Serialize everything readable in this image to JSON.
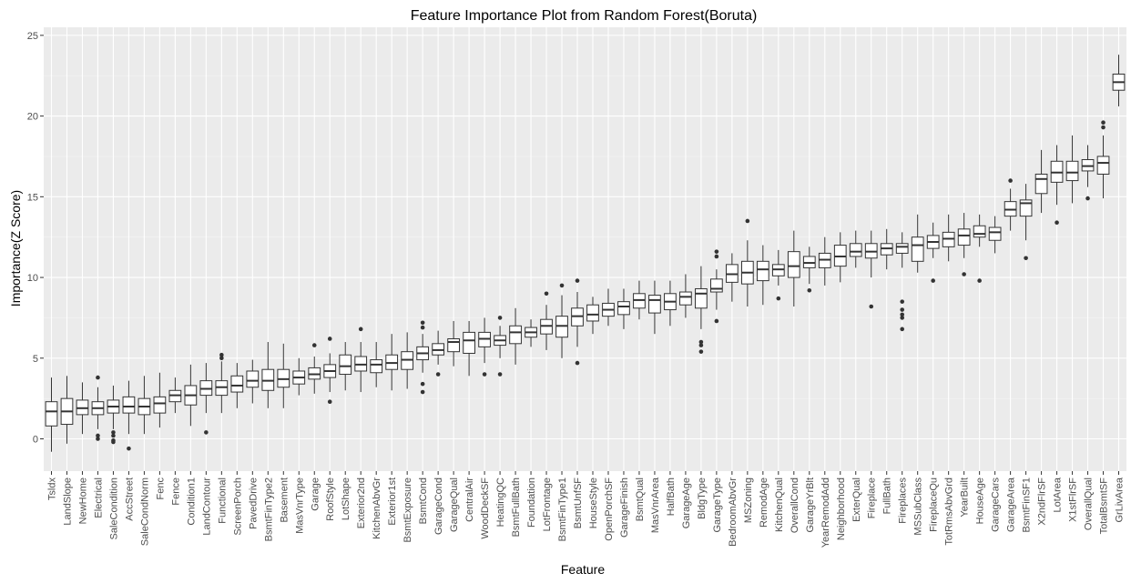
{
  "chart_data": {
    "type": "boxplot",
    "title": "Feature Importance Plot from Random Forest(Boruta)",
    "xlabel": "Feature",
    "ylabel": "Importance(Z Score)",
    "ylim": [
      -2,
      25.5
    ],
    "yticks": [
      0,
      5,
      10,
      15,
      20,
      25
    ],
    "grid": true,
    "legend": "none",
    "colors": {
      "panel": "#ebebeb",
      "grid_major": "#ffffff",
      "grid_minor": "#f5f5f5",
      "box_fill": "#ffffff",
      "box_line": "#333333",
      "tick_text": "#4d4d4d"
    },
    "categories": [
      "Tsldx",
      "LandSlope",
      "NewHome",
      "Electrical",
      "SaleCondition",
      "AccStreet",
      "SaleCondNorm",
      "Fenc",
      "Fence",
      "Condition1",
      "LandContour",
      "Functional",
      "ScreenPorch",
      "PavedDrive",
      "BsmtFinType2",
      "Basement",
      "MasVnrType",
      "Garage",
      "RoofStyle",
      "LotShape",
      "Exterior2nd",
      "KitchenAbvGr",
      "Exterior1st",
      "BsmtExposure",
      "BsmtCond",
      "GarageCond",
      "GarageQual",
      "CentralAir",
      "WoodDeckSF",
      "HeatingQC",
      "BsmtFullBath",
      "Foundation",
      "LotFrontage",
      "BsmtFinType1",
      "BsmtUnfSF",
      "HouseStyle",
      "OpenPorchSF",
      "GarageFinish",
      "BsmtQual",
      "MasVnrArea",
      "HalfBath",
      "GarageAge",
      "BldgType",
      "GarageType",
      "BedroomAbvGr",
      "MSZoning",
      "RemodAge",
      "KitchenQual",
      "OverallCond",
      "GarageYrBlt",
      "YearRemodAdd",
      "Neighborhood",
      "ExterQual",
      "Fireplace",
      "FullBath",
      "Fireplaces",
      "MSSubClass",
      "FireplaceQu",
      "TotRmsAbvGrd",
      "YearBuilt",
      "HouseAge",
      "GarageCars",
      "GarageArea",
      "BsmtFinSF1",
      "X2ndFlrSF",
      "LotArea",
      "X1stFlrSF",
      "OverallQual",
      "TotalBsmtSF",
      "GrLivArea"
    ],
    "boxes": [
      {
        "low": -0.8,
        "q1": 0.8,
        "median": 1.7,
        "q3": 2.3,
        "high": 3.8,
        "outliers": []
      },
      {
        "low": -0.3,
        "q1": 0.9,
        "median": 1.7,
        "q3": 2.5,
        "high": 3.9,
        "outliers": []
      },
      {
        "low": 0.3,
        "q1": 1.5,
        "median": 1.9,
        "q3": 2.4,
        "high": 3.5,
        "outliers": []
      },
      {
        "low": 0.6,
        "q1": 1.5,
        "median": 1.9,
        "q3": 2.3,
        "high": 3.2,
        "outliers": [
          3.8,
          0.2,
          0.0
        ]
      },
      {
        "low": 0.6,
        "q1": 1.6,
        "median": 2.0,
        "q3": 2.4,
        "high": 3.3,
        "outliers": [
          0.4,
          0.2,
          -0.1,
          -0.2
        ]
      },
      {
        "low": 0.3,
        "q1": 1.6,
        "median": 2.0,
        "q3": 2.6,
        "high": 3.6,
        "outliers": [
          -0.6
        ]
      },
      {
        "low": 0.3,
        "q1": 1.5,
        "median": 2.0,
        "q3": 2.5,
        "high": 3.9,
        "outliers": []
      },
      {
        "low": 0.7,
        "q1": 1.6,
        "median": 2.2,
        "q3": 2.6,
        "high": 4.1,
        "outliers": []
      },
      {
        "low": 1.6,
        "q1": 2.3,
        "median": 2.7,
        "q3": 3.0,
        "high": 3.8,
        "outliers": []
      },
      {
        "low": 0.8,
        "q1": 2.1,
        "median": 2.7,
        "q3": 3.3,
        "high": 4.6,
        "outliers": []
      },
      {
        "low": 1.6,
        "q1": 2.7,
        "median": 3.1,
        "q3": 3.6,
        "high": 4.7,
        "outliers": [
          0.4
        ]
      },
      {
        "low": 1.6,
        "q1": 2.7,
        "median": 3.2,
        "q3": 3.6,
        "high": 4.8,
        "outliers": [
          5.2,
          5.0
        ]
      },
      {
        "low": 1.9,
        "q1": 2.9,
        "median": 3.3,
        "q3": 3.9,
        "high": 4.7,
        "outliers": []
      },
      {
        "low": 2.2,
        "q1": 3.2,
        "median": 3.6,
        "q3": 4.2,
        "high": 4.9,
        "outliers": []
      },
      {
        "low": 1.9,
        "q1": 3.0,
        "median": 3.6,
        "q3": 4.3,
        "high": 6.0,
        "outliers": []
      },
      {
        "low": 1.9,
        "q1": 3.2,
        "median": 3.7,
        "q3": 4.3,
        "high": 5.9,
        "outliers": []
      },
      {
        "low": 2.7,
        "q1": 3.4,
        "median": 3.8,
        "q3": 4.2,
        "high": 5.0,
        "outliers": []
      },
      {
        "low": 2.8,
        "q1": 3.7,
        "median": 4.0,
        "q3": 4.4,
        "high": 5.1,
        "outliers": [
          5.8
        ]
      },
      {
        "low": 2.9,
        "q1": 3.8,
        "median": 4.2,
        "q3": 4.6,
        "high": 5.3,
        "outliers": [
          6.2,
          2.3
        ]
      },
      {
        "low": 3.0,
        "q1": 4.0,
        "median": 4.5,
        "q3": 5.2,
        "high": 6.0,
        "outliers": []
      },
      {
        "low": 2.9,
        "q1": 4.2,
        "median": 4.6,
        "q3": 5.1,
        "high": 6.0,
        "outliers": [
          6.8
        ]
      },
      {
        "low": 3.2,
        "q1": 4.1,
        "median": 4.6,
        "q3": 4.9,
        "high": 6.0,
        "outliers": []
      },
      {
        "low": 3.0,
        "q1": 4.3,
        "median": 4.7,
        "q3": 5.2,
        "high": 6.5,
        "outliers": []
      },
      {
        "low": 3.1,
        "q1": 4.3,
        "median": 4.9,
        "q3": 5.4,
        "high": 6.6,
        "outliers": []
      },
      {
        "low": 4.1,
        "q1": 4.9,
        "median": 5.3,
        "q3": 5.7,
        "high": 6.5,
        "outliers": [
          7.2,
          6.9,
          3.4,
          2.9
        ]
      },
      {
        "low": 4.6,
        "q1": 5.2,
        "median": 5.5,
        "q3": 5.9,
        "high": 6.7,
        "outliers": [
          4.0
        ]
      },
      {
        "low": 4.5,
        "q1": 5.4,
        "median": 6.0,
        "q3": 6.2,
        "high": 7.3,
        "outliers": []
      },
      {
        "low": 3.9,
        "q1": 5.3,
        "median": 6.1,
        "q3": 6.6,
        "high": 7.3,
        "outliers": []
      },
      {
        "low": 4.7,
        "q1": 5.7,
        "median": 6.2,
        "q3": 6.6,
        "high": 7.5,
        "outliers": [
          4.0
        ]
      },
      {
        "low": 5.0,
        "q1": 5.8,
        "median": 6.1,
        "q3": 6.4,
        "high": 7.0,
        "outliers": [
          7.5,
          4.0
        ]
      },
      {
        "low": 4.6,
        "q1": 5.9,
        "median": 6.6,
        "q3": 7.0,
        "high": 8.1,
        "outliers": []
      },
      {
        "low": 5.7,
        "q1": 6.3,
        "median": 6.6,
        "q3": 6.9,
        "high": 7.4,
        "outliers": []
      },
      {
        "low": 5.5,
        "q1": 6.5,
        "median": 7.0,
        "q3": 7.4,
        "high": 8.3,
        "outliers": [
          9.0
        ]
      },
      {
        "low": 5.0,
        "q1": 6.3,
        "median": 7.0,
        "q3": 7.6,
        "high": 8.9,
        "outliers": [
          9.5
        ]
      },
      {
        "low": 5.7,
        "q1": 7.0,
        "median": 7.6,
        "q3": 8.1,
        "high": 9.1,
        "outliers": [
          9.8,
          4.7
        ]
      },
      {
        "low": 6.5,
        "q1": 7.3,
        "median": 7.7,
        "q3": 8.3,
        "high": 8.8,
        "outliers": []
      },
      {
        "low": 7.0,
        "q1": 7.6,
        "median": 8.0,
        "q3": 8.4,
        "high": 9.3,
        "outliers": []
      },
      {
        "low": 6.8,
        "q1": 7.7,
        "median": 8.2,
        "q3": 8.5,
        "high": 9.3,
        "outliers": []
      },
      {
        "low": 7.4,
        "q1": 8.1,
        "median": 8.6,
        "q3": 9.0,
        "high": 9.8,
        "outliers": []
      },
      {
        "low": 6.5,
        "q1": 7.8,
        "median": 8.6,
        "q3": 8.9,
        "high": 9.8,
        "outliers": []
      },
      {
        "low": 7.0,
        "q1": 8.0,
        "median": 8.5,
        "q3": 9.0,
        "high": 9.8,
        "outliers": []
      },
      {
        "low": 7.5,
        "q1": 8.3,
        "median": 8.8,
        "q3": 9.1,
        "high": 10.2,
        "outliers": []
      },
      {
        "low": 6.8,
        "q1": 8.1,
        "median": 9.0,
        "q3": 9.3,
        "high": 10.7,
        "outliers": [
          6.0,
          5.8,
          5.4
        ]
      },
      {
        "low": 8.0,
        "q1": 9.1,
        "median": 9.3,
        "q3": 9.9,
        "high": 10.5,
        "outliers": [
          11.6,
          11.3,
          7.3
        ]
      },
      {
        "low": 8.5,
        "q1": 9.7,
        "median": 10.2,
        "q3": 10.8,
        "high": 11.5,
        "outliers": []
      },
      {
        "low": 8.2,
        "q1": 9.6,
        "median": 10.3,
        "q3": 11.0,
        "high": 12.3,
        "outliers": [
          13.5
        ]
      },
      {
        "low": 8.3,
        "q1": 9.8,
        "median": 10.5,
        "q3": 11.0,
        "high": 12.0,
        "outliers": []
      },
      {
        "low": 9.5,
        "q1": 10.1,
        "median": 10.5,
        "q3": 10.8,
        "high": 11.7,
        "outliers": [
          8.7
        ]
      },
      {
        "low": 8.2,
        "q1": 10.0,
        "median": 10.7,
        "q3": 11.6,
        "high": 12.9,
        "outliers": []
      },
      {
        "low": 9.6,
        "q1": 10.6,
        "median": 10.9,
        "q3": 11.3,
        "high": 11.9,
        "outliers": [
          9.2
        ]
      },
      {
        "low": 9.5,
        "q1": 10.6,
        "median": 11.1,
        "q3": 11.5,
        "high": 12.5,
        "outliers": []
      },
      {
        "low": 9.7,
        "q1": 10.7,
        "median": 11.3,
        "q3": 12.0,
        "high": 12.8,
        "outliers": []
      },
      {
        "low": 10.6,
        "q1": 11.3,
        "median": 11.6,
        "q3": 12.1,
        "high": 12.9,
        "outliers": []
      },
      {
        "low": 10.0,
        "q1": 11.2,
        "median": 11.6,
        "q3": 12.1,
        "high": 12.9,
        "outliers": [
          8.2
        ]
      },
      {
        "low": 10.5,
        "q1": 11.4,
        "median": 11.8,
        "q3": 12.1,
        "high": 13.0,
        "outliers": []
      },
      {
        "low": 10.6,
        "q1": 11.5,
        "median": 11.9,
        "q3": 12.1,
        "high": 12.8,
        "outliers": [
          8.5,
          8.0,
          7.7,
          7.5,
          6.8
        ]
      },
      {
        "low": 10.3,
        "q1": 11.0,
        "median": 12.0,
        "q3": 12.5,
        "high": 13.9,
        "outliers": []
      },
      {
        "low": 11.2,
        "q1": 11.8,
        "median": 12.2,
        "q3": 12.6,
        "high": 13.4,
        "outliers": [
          9.8
        ]
      },
      {
        "low": 11.0,
        "q1": 11.9,
        "median": 12.4,
        "q3": 12.8,
        "high": 13.9,
        "outliers": []
      },
      {
        "low": 11.2,
        "q1": 12.0,
        "median": 12.6,
        "q3": 13.0,
        "high": 14.0,
        "outliers": [
          10.2
        ]
      },
      {
        "low": 11.9,
        "q1": 12.5,
        "median": 12.7,
        "q3": 13.2,
        "high": 13.9,
        "outliers": [
          9.8
        ]
      },
      {
        "low": 11.5,
        "q1": 12.3,
        "median": 12.8,
        "q3": 13.1,
        "high": 13.8,
        "outliers": []
      },
      {
        "low": 12.9,
        "q1": 13.8,
        "median": 14.2,
        "q3": 14.7,
        "high": 15.5,
        "outliers": [
          16.0
        ]
      },
      {
        "low": 12.3,
        "q1": 13.8,
        "median": 14.6,
        "q3": 14.8,
        "high": 15.8,
        "outliers": [
          11.2
        ]
      },
      {
        "low": 14.0,
        "q1": 15.2,
        "median": 16.1,
        "q3": 16.4,
        "high": 17.9,
        "outliers": []
      },
      {
        "low": 14.5,
        "q1": 15.9,
        "median": 16.5,
        "q3": 17.2,
        "high": 18.2,
        "outliers": [
          13.4
        ]
      },
      {
        "low": 14.6,
        "q1": 16.0,
        "median": 16.5,
        "q3": 17.2,
        "high": 18.8,
        "outliers": []
      },
      {
        "low": 15.6,
        "q1": 16.6,
        "median": 16.9,
        "q3": 17.3,
        "high": 18.2,
        "outliers": [
          14.9
        ]
      },
      {
        "low": 14.9,
        "q1": 16.4,
        "median": 17.1,
        "q3": 17.5,
        "high": 18.8,
        "outliers": [
          19.6,
          19.3
        ]
      },
      {
        "low": 20.6,
        "q1": 21.6,
        "median": 22.1,
        "q3": 22.6,
        "high": 23.8,
        "outliers": []
      }
    ]
  }
}
